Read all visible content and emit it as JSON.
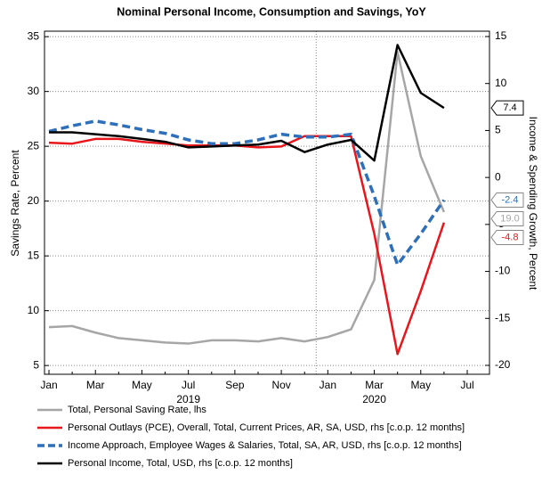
{
  "chart_data": {
    "type": "line",
    "title": "Nominal Personal Income, Consumption and Savings, YoY",
    "ylabel": "Savings Rate, Percent",
    "y2label": "Income & Spending Growth, Percent",
    "categories": [
      "Jan",
      null,
      "Mar",
      null,
      "May",
      null,
      "Jul",
      null,
      "Sep",
      null,
      "Nov",
      null,
      "Jan",
      null,
      "Mar",
      null,
      "May",
      null,
      "Jul"
    ],
    "year_labels": [
      "2019",
      "2020"
    ],
    "ylim": [
      4.2,
      35.5
    ],
    "yticks": [
      5,
      10,
      15,
      20,
      25,
      30,
      35
    ],
    "y2lim": [
      -20.95,
      15.57
    ],
    "y2ticks": [
      -20,
      -15,
      -10,
      -5,
      0,
      5,
      10,
      15
    ],
    "grid": true,
    "legend": "bottom",
    "series": [
      {
        "name": "Total, Personal Saving Rate, lhs",
        "color": "#a6a6a6",
        "dash": false,
        "values": [
          8.5,
          8.6,
          8.0,
          7.5,
          7.3,
          7.1,
          7.0,
          7.3,
          7.3,
          7.2,
          7.5,
          7.2,
          7.6,
          8.3,
          12.8,
          33.6,
          24.1,
          19.0,
          null
        ],
        "value_labels": [
          null,
          null,
          null,
          null,
          null,
          null,
          null,
          null,
          null,
          null,
          null,
          null,
          null,
          null,
          null,
          null,
          null,
          "19.0",
          null
        ]
      },
      {
        "name": "Personal Outlays (PCE), Overall, Total, Current Prices, AR, SA, USD, rhs [c.o.p. 12 months]",
        "color": "#e8161b",
        "dash": false,
        "axis": "y2",
        "values": [
          3.7,
          3.6,
          4.1,
          4.1,
          3.8,
          3.6,
          3.4,
          3.4,
          3.4,
          3.2,
          3.3,
          4.4,
          4.4,
          4.4,
          -6.0,
          -18.8,
          -12.1,
          -4.8,
          null
        ]
      },
      {
        "name": "Income Approach, Employee Wages & Salaries, Total, SA, AR, USD, rhs [c.o.p. 12 months]",
        "color": "#2e6fba",
        "dash": true,
        "axis": "y2",
        "values": [
          4.9,
          5.5,
          6.0,
          5.6,
          5.1,
          4.7,
          4.0,
          3.6,
          3.6,
          4.0,
          4.6,
          4.3,
          4.3,
          4.6,
          -2.0,
          -9.3,
          -6.0,
          -2.4,
          null
        ]
      },
      {
        "name": "Personal Income, Total, USD, rhs [c.o.p. 12 months]",
        "color": "#000000",
        "dash": false,
        "axis": "y2",
        "values": [
          4.8,
          4.8,
          4.6,
          4.4,
          4.1,
          3.8,
          3.2,
          3.3,
          3.4,
          3.5,
          3.9,
          2.7,
          3.5,
          4.0,
          1.8,
          14.1,
          9.0,
          7.4,
          null
        ]
      }
    ]
  }
}
